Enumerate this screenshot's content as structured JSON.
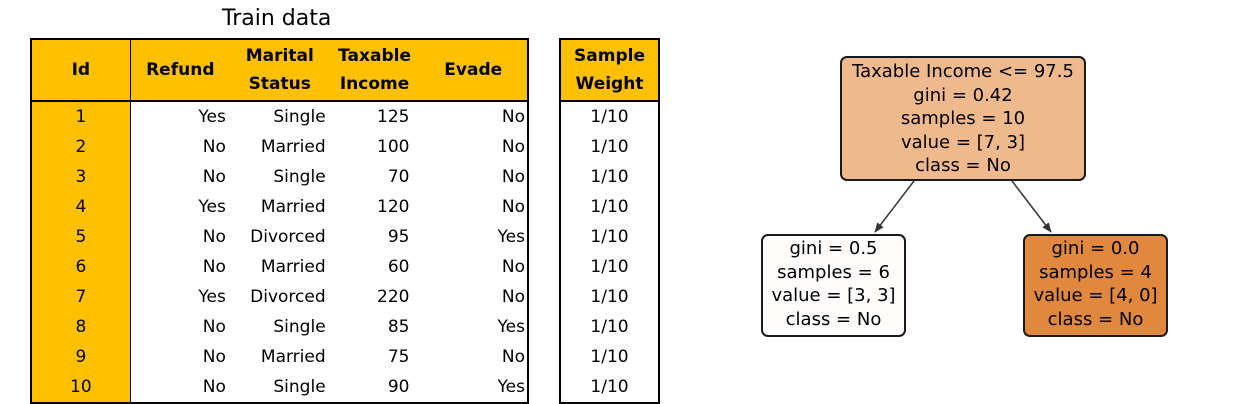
{
  "title": "Train data",
  "train_table": {
    "headers": [
      "Id",
      "Refund",
      "Marital Status",
      "Taxable Income",
      "Evade"
    ],
    "header_lines": [
      [
        "Id"
      ],
      [
        "Refund"
      ],
      [
        "Marital",
        "Status"
      ],
      [
        "Taxable",
        "Income"
      ],
      [
        "Evade"
      ]
    ],
    "rows": [
      [
        "1",
        "Yes",
        "Single",
        "125",
        "No"
      ],
      [
        "2",
        "No",
        "Married",
        "100",
        "No"
      ],
      [
        "3",
        "No",
        "Single",
        "70",
        "No"
      ],
      [
        "4",
        "Yes",
        "Married",
        "120",
        "No"
      ],
      [
        "5",
        "No",
        "Divorced",
        "95",
        "Yes"
      ],
      [
        "6",
        "No",
        "Married",
        "60",
        "No"
      ],
      [
        "7",
        "Yes",
        "Divorced",
        "220",
        "No"
      ],
      [
        "8",
        "No",
        "Single",
        "85",
        "Yes"
      ],
      [
        "9",
        "No",
        "Married",
        "75",
        "No"
      ],
      [
        "10",
        "No",
        "Single",
        "90",
        "Yes"
      ]
    ]
  },
  "weight_table": {
    "header_lines": [
      "Sample",
      "Weight"
    ],
    "values": [
      "1/10",
      "1/10",
      "1/10",
      "1/10",
      "1/10",
      "1/10",
      "1/10",
      "1/10",
      "1/10",
      "1/10"
    ]
  },
  "tree": {
    "root": {
      "lines": [
        "Taxable Income <= 97.5",
        "gini = 0.42",
        "samples = 10",
        "value = [7, 3]",
        "class = No"
      ],
      "fill": "#efb98e"
    },
    "left": {
      "lines": [
        "gini = 0.5",
        "samples = 6",
        "value = [3, 3]",
        "class = No"
      ],
      "fill": "#fffdfb"
    },
    "right": {
      "lines": [
        "gini = 0.0",
        "samples = 4",
        "value = [4, 0]",
        "class = No"
      ],
      "fill": "#e0883e"
    }
  },
  "colors": {
    "header_fill": "#ffc000",
    "border": "#000000"
  }
}
